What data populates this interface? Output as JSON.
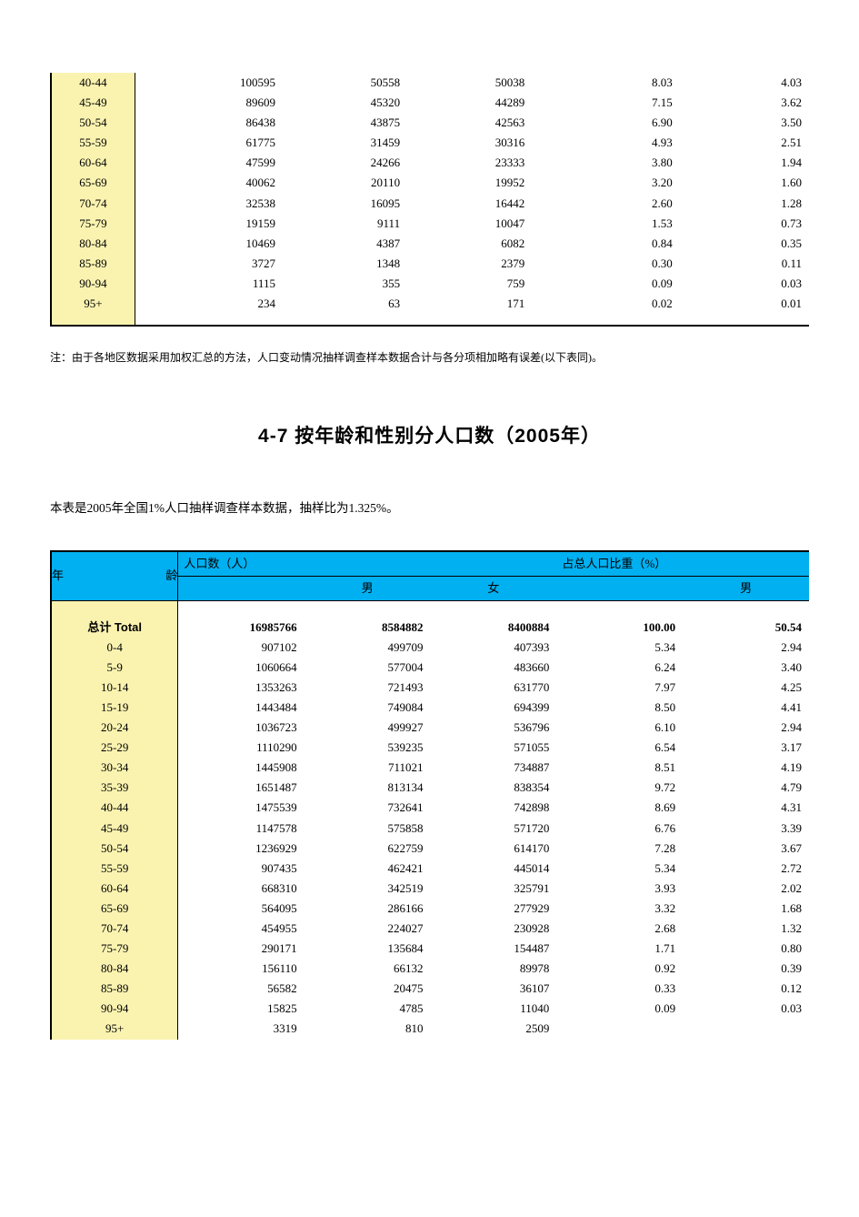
{
  "colors": {
    "header_bg": "#00b0f0",
    "age_col_bg": "#faf3b0",
    "border": "#000000",
    "page_bg": "#ffffff",
    "text": "#000000"
  },
  "table1": {
    "rows": [
      {
        "age": "40-44",
        "c1": "100595",
        "c2": "50558",
        "c3": "50038",
        "c4": "8.03",
        "c5": "4.03"
      },
      {
        "age": "45-49",
        "c1": "89609",
        "c2": "45320",
        "c3": "44289",
        "c4": "7.15",
        "c5": "3.62"
      },
      {
        "age": "50-54",
        "c1": "86438",
        "c2": "43875",
        "c3": "42563",
        "c4": "6.90",
        "c5": "3.50"
      },
      {
        "age": "55-59",
        "c1": "61775",
        "c2": "31459",
        "c3": "30316",
        "c4": "4.93",
        "c5": "2.51"
      },
      {
        "age": "60-64",
        "c1": "47599",
        "c2": "24266",
        "c3": "23333",
        "c4": "3.80",
        "c5": "1.94"
      },
      {
        "age": "65-69",
        "c1": "40062",
        "c2": "20110",
        "c3": "19952",
        "c4": "3.20",
        "c5": "1.60"
      },
      {
        "age": "70-74",
        "c1": "32538",
        "c2": "16095",
        "c3": "16442",
        "c4": "2.60",
        "c5": "1.28"
      },
      {
        "age": "75-79",
        "c1": "19159",
        "c2": "9111",
        "c3": "10047",
        "c4": "1.53",
        "c5": "0.73"
      },
      {
        "age": "80-84",
        "c1": "10469",
        "c2": "4387",
        "c3": "6082",
        "c4": "0.84",
        "c5": "0.35"
      },
      {
        "age": "85-89",
        "c1": "3727",
        "c2": "1348",
        "c3": "2379",
        "c4": "0.30",
        "c5": "0.11"
      },
      {
        "age": "90-94",
        "c1": "1115",
        "c2": "355",
        "c3": "759",
        "c4": "0.09",
        "c5": "0.03"
      },
      {
        "age": "95+",
        "c1": "234",
        "c2": "63",
        "c3": "171",
        "c4": "0.02",
        "c5": "0.01"
      }
    ]
  },
  "note_text": "注：由于各地区数据采用加权汇总的方法，人口变动情况抽样调查样本数据合计与各分项相加略有误差(以下表同)。",
  "section_title": "4-7  按年龄和性别分人口数（2005年）",
  "section_desc": "本表是2005年全国1%人口抽样调查样本数据，抽样比为1.325%。",
  "table2": {
    "header": {
      "age_label": "年龄",
      "group1_label": "人口数（人）",
      "group2_label": "占总人口比重（%）",
      "sub_male": "男",
      "sub_female": "女",
      "sub_male2": "男"
    },
    "total": {
      "age": "总计  Total",
      "c1": "16985766",
      "c2": "8584882",
      "c3": "8400884",
      "c4": "100.00",
      "c5": "50.54"
    },
    "rows": [
      {
        "age": "0-4",
        "c1": "907102",
        "c2": "499709",
        "c3": "407393",
        "c4": "5.34",
        "c5": "2.94"
      },
      {
        "age": "5-9",
        "c1": "1060664",
        "c2": "577004",
        "c3": "483660",
        "c4": "6.24",
        "c5": "3.40"
      },
      {
        "age": "10-14",
        "c1": "1353263",
        "c2": "721493",
        "c3": "631770",
        "c4": "7.97",
        "c5": "4.25"
      },
      {
        "age": "15-19",
        "c1": "1443484",
        "c2": "749084",
        "c3": "694399",
        "c4": "8.50",
        "c5": "4.41"
      },
      {
        "age": "20-24",
        "c1": "1036723",
        "c2": "499927",
        "c3": "536796",
        "c4": "6.10",
        "c5": "2.94"
      },
      {
        "age": "25-29",
        "c1": "1110290",
        "c2": "539235",
        "c3": "571055",
        "c4": "6.54",
        "c5": "3.17"
      },
      {
        "age": "30-34",
        "c1": "1445908",
        "c2": "711021",
        "c3": "734887",
        "c4": "8.51",
        "c5": "4.19"
      },
      {
        "age": "35-39",
        "c1": "1651487",
        "c2": "813134",
        "c3": "838354",
        "c4": "9.72",
        "c5": "4.79"
      },
      {
        "age": "40-44",
        "c1": "1475539",
        "c2": "732641",
        "c3": "742898",
        "c4": "8.69",
        "c5": "4.31"
      },
      {
        "age": "45-49",
        "c1": "1147578",
        "c2": "575858",
        "c3": "571720",
        "c4": "6.76",
        "c5": "3.39"
      },
      {
        "age": "50-54",
        "c1": "1236929",
        "c2": "622759",
        "c3": "614170",
        "c4": "7.28",
        "c5": "3.67"
      },
      {
        "age": "55-59",
        "c1": "907435",
        "c2": "462421",
        "c3": "445014",
        "c4": "5.34",
        "c5": "2.72"
      },
      {
        "age": "60-64",
        "c1": "668310",
        "c2": "342519",
        "c3": "325791",
        "c4": "3.93",
        "c5": "2.02"
      },
      {
        "age": "65-69",
        "c1": "564095",
        "c2": "286166",
        "c3": "277929",
        "c4": "3.32",
        "c5": "1.68"
      },
      {
        "age": "70-74",
        "c1": "454955",
        "c2": "224027",
        "c3": "230928",
        "c4": "2.68",
        "c5": "1.32"
      },
      {
        "age": "75-79",
        "c1": "290171",
        "c2": "135684",
        "c3": "154487",
        "c4": "1.71",
        "c5": "0.80"
      },
      {
        "age": "80-84",
        "c1": "156110",
        "c2": "66132",
        "c3": "89978",
        "c4": "0.92",
        "c5": "0.39"
      },
      {
        "age": "85-89",
        "c1": "56582",
        "c2": "20475",
        "c3": "36107",
        "c4": "0.33",
        "c5": "0.12"
      },
      {
        "age": "90-94",
        "c1": "15825",
        "c2": "4785",
        "c3": "11040",
        "c4": "0.09",
        "c5": "0.03"
      },
      {
        "age": "95+",
        "c1": "3319",
        "c2": "810",
        "c3": "2509",
        "c4": "",
        "c5": ""
      }
    ]
  }
}
